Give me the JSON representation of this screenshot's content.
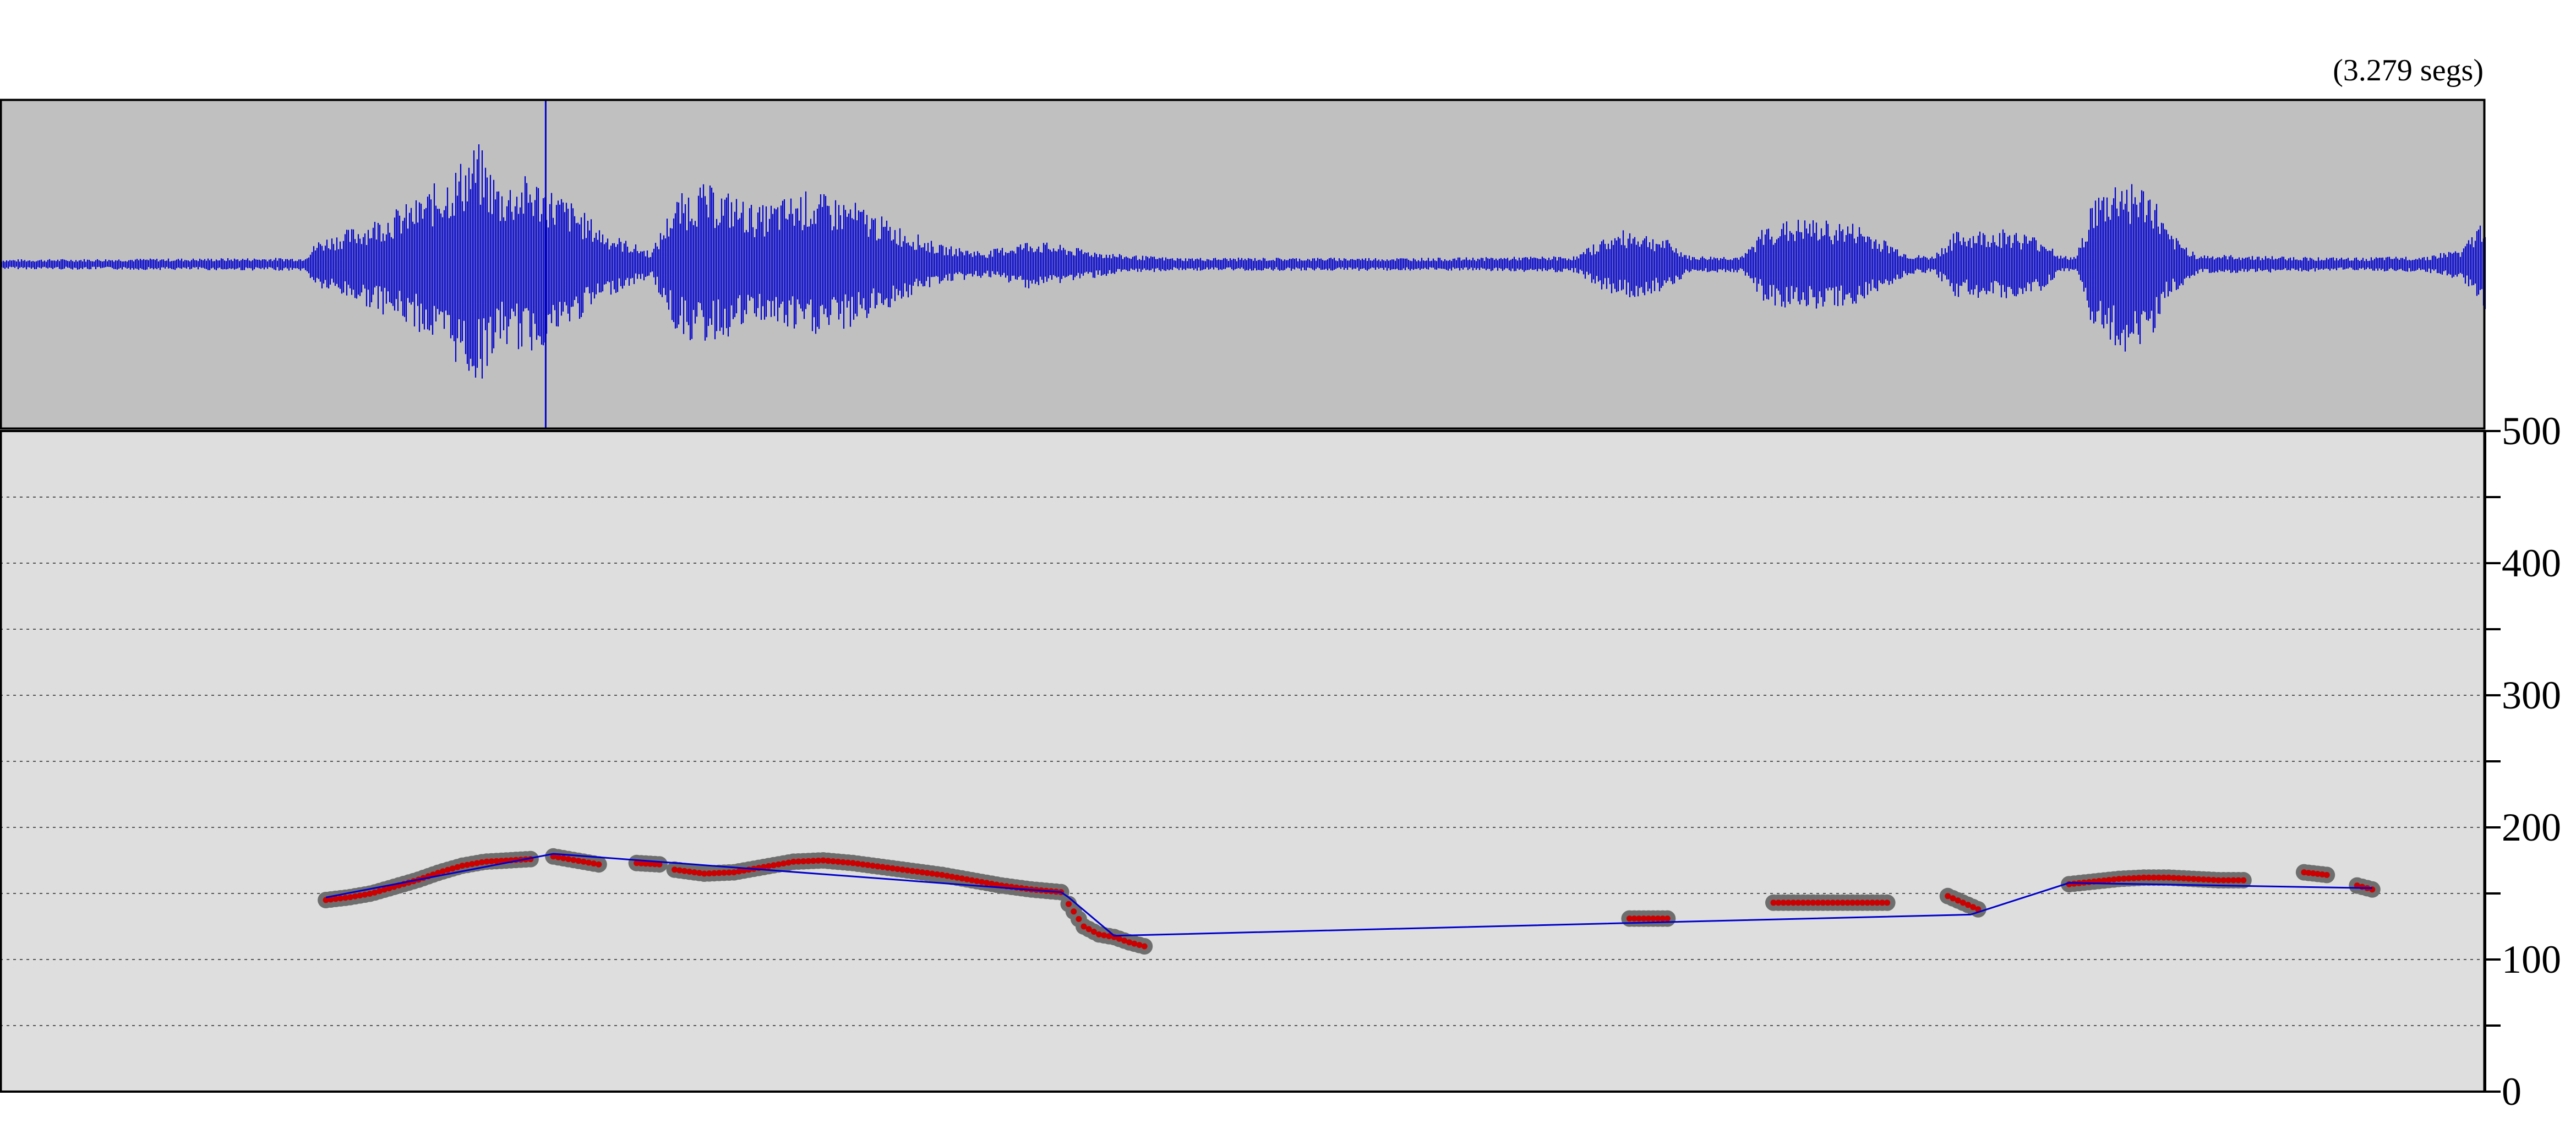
{
  "header": {
    "duration_label": "(3.279 segs)"
  },
  "colors": {
    "waveform_bg": "#c0c0c0",
    "waveform": "#0000cc",
    "pitch_bg": "#dedede",
    "gridline": "#555555",
    "pitch_halo": "#6e6e6e",
    "pitch_dot": "#cc0000",
    "stylized_line": "#0000cc"
  },
  "chart_data": [
    {
      "type": "waveform",
      "title": "",
      "duration_s": 3.279,
      "cursor_time_s": 0.72,
      "envelope": {
        "t": [
          0.0,
          0.4,
          0.42,
          0.48,
          0.55,
          0.6,
          0.63,
          0.66,
          0.7,
          0.75,
          0.8,
          0.86,
          0.89,
          0.92,
          0.96,
          1.0,
          1.06,
          1.12,
          1.18,
          1.24,
          1.3,
          1.36,
          1.42,
          1.48,
          1.55,
          1.7,
          1.9,
          2.08,
          2.11,
          2.15,
          2.2,
          2.23,
          2.3,
          2.33,
          2.38,
          2.45,
          2.52,
          2.55,
          2.58,
          2.65,
          2.7,
          2.72,
          2.74,
          2.76,
          2.8,
          2.84,
          2.86,
          2.9,
          3.0,
          3.1,
          3.2,
          3.25,
          3.279
        ],
        "amp": [
          0.03,
          0.04,
          0.15,
          0.25,
          0.4,
          0.6,
          0.75,
          0.5,
          0.55,
          0.4,
          0.2,
          0.08,
          0.4,
          0.5,
          0.45,
          0.35,
          0.45,
          0.4,
          0.25,
          0.12,
          0.08,
          0.15,
          0.1,
          0.06,
          0.04,
          0.04,
          0.04,
          0.05,
          0.15,
          0.22,
          0.15,
          0.05,
          0.05,
          0.25,
          0.28,
          0.25,
          0.06,
          0.05,
          0.2,
          0.22,
          0.15,
          0.05,
          0.05,
          0.4,
          0.55,
          0.45,
          0.2,
          0.06,
          0.05,
          0.04,
          0.05,
          0.1,
          0.3
        ]
      }
    },
    {
      "type": "scatter",
      "title": "",
      "xlabel": "",
      "ylabel": "",
      "xlim": [
        0,
        3.279
      ],
      "ylim": [
        0,
        500
      ],
      "yticks": [
        0,
        100,
        200,
        300,
        400,
        500
      ],
      "y_minor_ticks": [
        50,
        150,
        250,
        350,
        450
      ],
      "grid": "dotted, every 50",
      "pitch_segments": [
        {
          "t_start": 0.43,
          "t_end": 0.7,
          "hz": [
            145,
            147,
            150,
            155,
            160,
            166,
            171,
            174,
            175,
            176
          ]
        },
        {
          "t_start": 0.73,
          "t_end": 0.79,
          "hz": [
            178,
            176,
            174,
            172
          ]
        },
        {
          "t_start": 0.84,
          "t_end": 0.87,
          "hz": [
            173,
            172
          ]
        },
        {
          "t_start": 0.89,
          "t_end": 1.4,
          "hz": [
            168,
            165,
            166,
            170,
            174,
            175,
            173,
            170,
            167,
            164,
            160,
            156,
            153,
            151
          ]
        },
        {
          "t_start": 1.41,
          "t_end": 1.51,
          "hz": [
            142,
            125,
            119,
            117,
            113,
            110
          ]
        },
        {
          "t_start": 2.15,
          "t_end": 2.2,
          "hz": [
            131,
            131,
            131
          ]
        },
        {
          "t_start": 2.34,
          "t_end": 2.49,
          "hz": [
            143,
            143,
            143,
            143,
            143
          ]
        },
        {
          "t_start": 2.57,
          "t_end": 2.61,
          "hz": [
            148,
            143,
            138
          ]
        },
        {
          "t_start": 2.73,
          "t_end": 2.96,
          "hz": [
            157,
            159,
            161,
            162,
            162,
            161,
            160,
            160
          ]
        },
        {
          "t_start": 3.04,
          "t_end": 3.07,
          "hz": [
            166,
            164
          ]
        },
        {
          "t_start": 3.11,
          "t_end": 3.13,
          "hz": [
            156,
            153
          ]
        }
      ],
      "stylized_contour": {
        "x": [
          0.43,
          0.73,
          1.4,
          1.41,
          1.47,
          2.6,
          2.73,
          3.13
        ],
        "y": [
          147,
          180,
          151,
          147,
          118,
          134,
          158,
          154
        ]
      }
    }
  ]
}
